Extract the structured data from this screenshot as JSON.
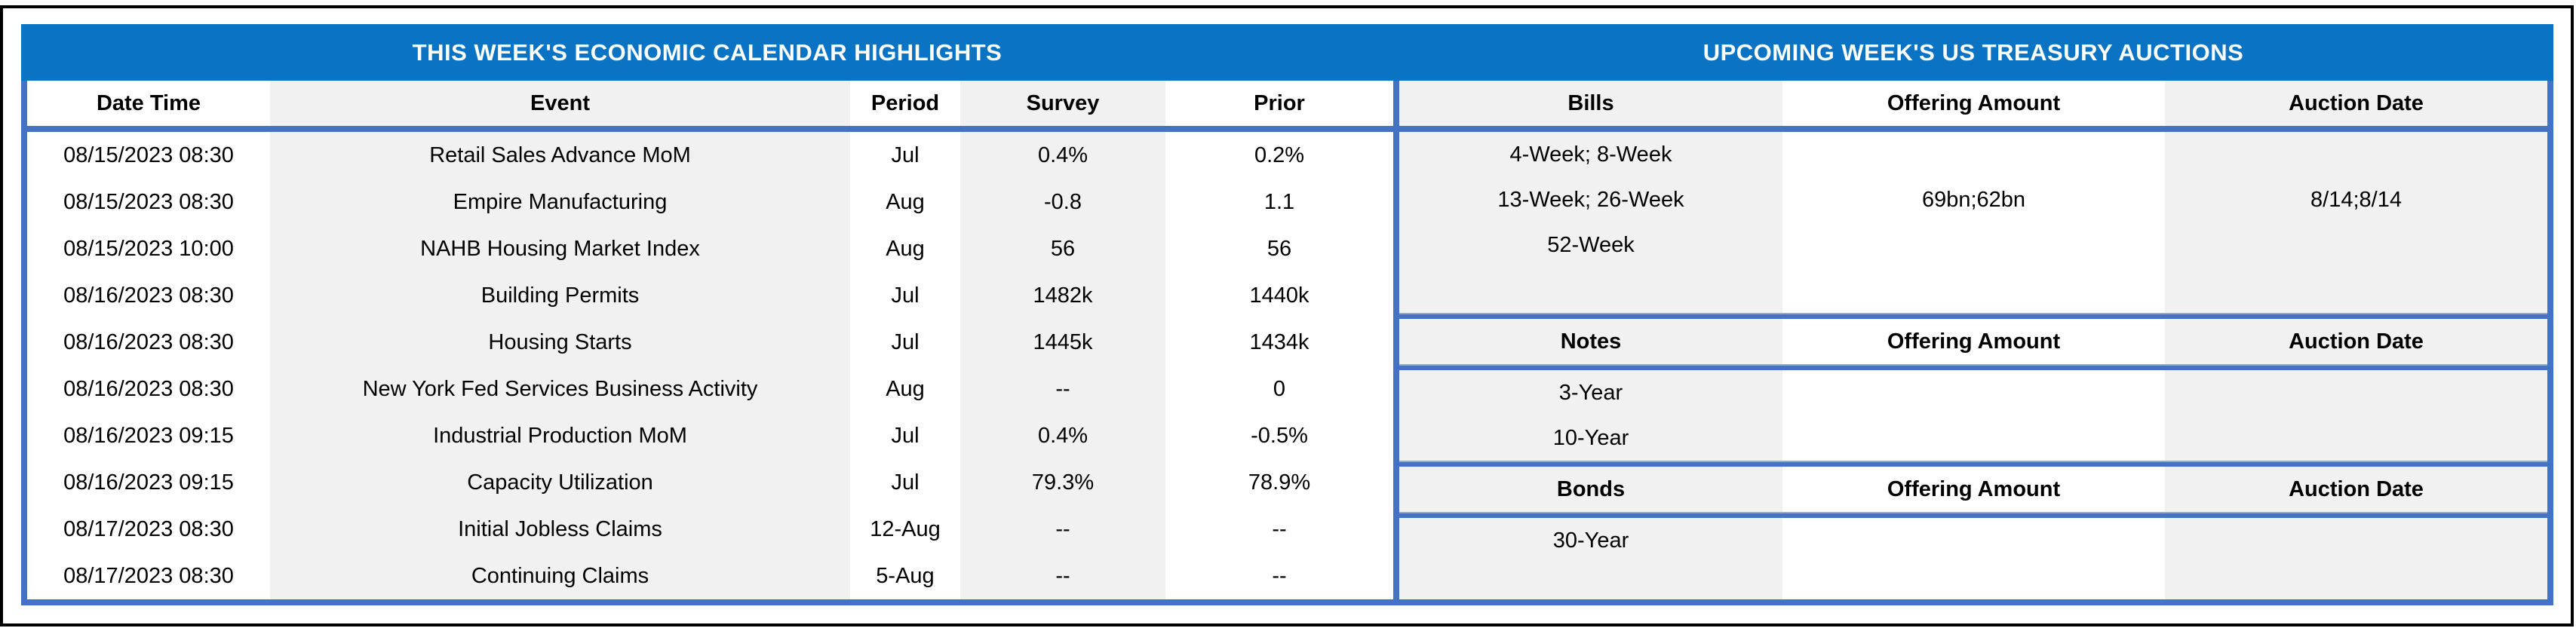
{
  "titles": {
    "left": "THIS WEEK'S ECONOMIC CALENDAR HIGHLIGHTS",
    "right": "UPCOMING WEEK'S US TREASURY AUCTIONS"
  },
  "colors": {
    "band_blue": "#0a73c4",
    "border_blue": "#4472c4",
    "cell_gray": "#f1f1f1",
    "text": "#000000"
  },
  "calendar": {
    "columns": [
      "Date Time",
      "Event",
      "Period",
      "Survey",
      "Prior"
    ],
    "rows": [
      {
        "date_time": "08/15/2023 08:30",
        "event": "Retail Sales Advance MoM",
        "period": "Jul",
        "survey": "0.4%",
        "prior": "0.2%"
      },
      {
        "date_time": "08/15/2023 08:30",
        "event": "Empire Manufacturing",
        "period": "Aug",
        "survey": "-0.8",
        "prior": "1.1"
      },
      {
        "date_time": "08/15/2023 10:00",
        "event": "NAHB Housing Market Index",
        "period": "Aug",
        "survey": "56",
        "prior": "56"
      },
      {
        "date_time": "08/16/2023 08:30",
        "event": "Building Permits",
        "period": "Jul",
        "survey": "1482k",
        "prior": "1440k"
      },
      {
        "date_time": "08/16/2023 08:30",
        "event": "Housing Starts",
        "period": "Jul",
        "survey": "1445k",
        "prior": "1434k"
      },
      {
        "date_time": "08/16/2023 08:30",
        "event": "New York Fed Services Business Activity",
        "period": "Aug",
        "survey": "--",
        "prior": "0"
      },
      {
        "date_time": "08/16/2023 09:15",
        "event": "Industrial Production MoM",
        "period": "Jul",
        "survey": "0.4%",
        "prior": "-0.5%"
      },
      {
        "date_time": "08/16/2023 09:15",
        "event": "Capacity Utilization",
        "period": "Jul",
        "survey": "79.3%",
        "prior": "78.9%"
      },
      {
        "date_time": "08/17/2023 08:30",
        "event": "Initial Jobless Claims",
        "period": "12-Aug",
        "survey": "--",
        "prior": "--"
      },
      {
        "date_time": "08/17/2023 08:30",
        "event": "Continuing Claims",
        "period": "5-Aug",
        "survey": "--",
        "prior": "--"
      }
    ]
  },
  "auctions": {
    "offering_amount_label": "Offering Amount",
    "auction_date_label": "Auction Date",
    "sections": [
      {
        "label": "Bills",
        "rows": [
          {
            "security": "4-Week; 8-Week",
            "offering_amount": "",
            "auction_date": ""
          },
          {
            "security": "13-Week; 26-Week",
            "offering_amount": "69bn;62bn",
            "auction_date": "8/14;8/14"
          },
          {
            "security": "52-Week",
            "offering_amount": "",
            "auction_date": ""
          },
          {
            "security": "",
            "offering_amount": "",
            "auction_date": ""
          }
        ]
      },
      {
        "label": "Notes",
        "rows": [
          {
            "security": "3-Year",
            "offering_amount": "",
            "auction_date": ""
          },
          {
            "security": "10-Year",
            "offering_amount": "",
            "auction_date": ""
          }
        ]
      },
      {
        "label": "Bonds",
        "rows": [
          {
            "security": "30-Year",
            "offering_amount": "",
            "auction_date": ""
          }
        ]
      }
    ]
  }
}
